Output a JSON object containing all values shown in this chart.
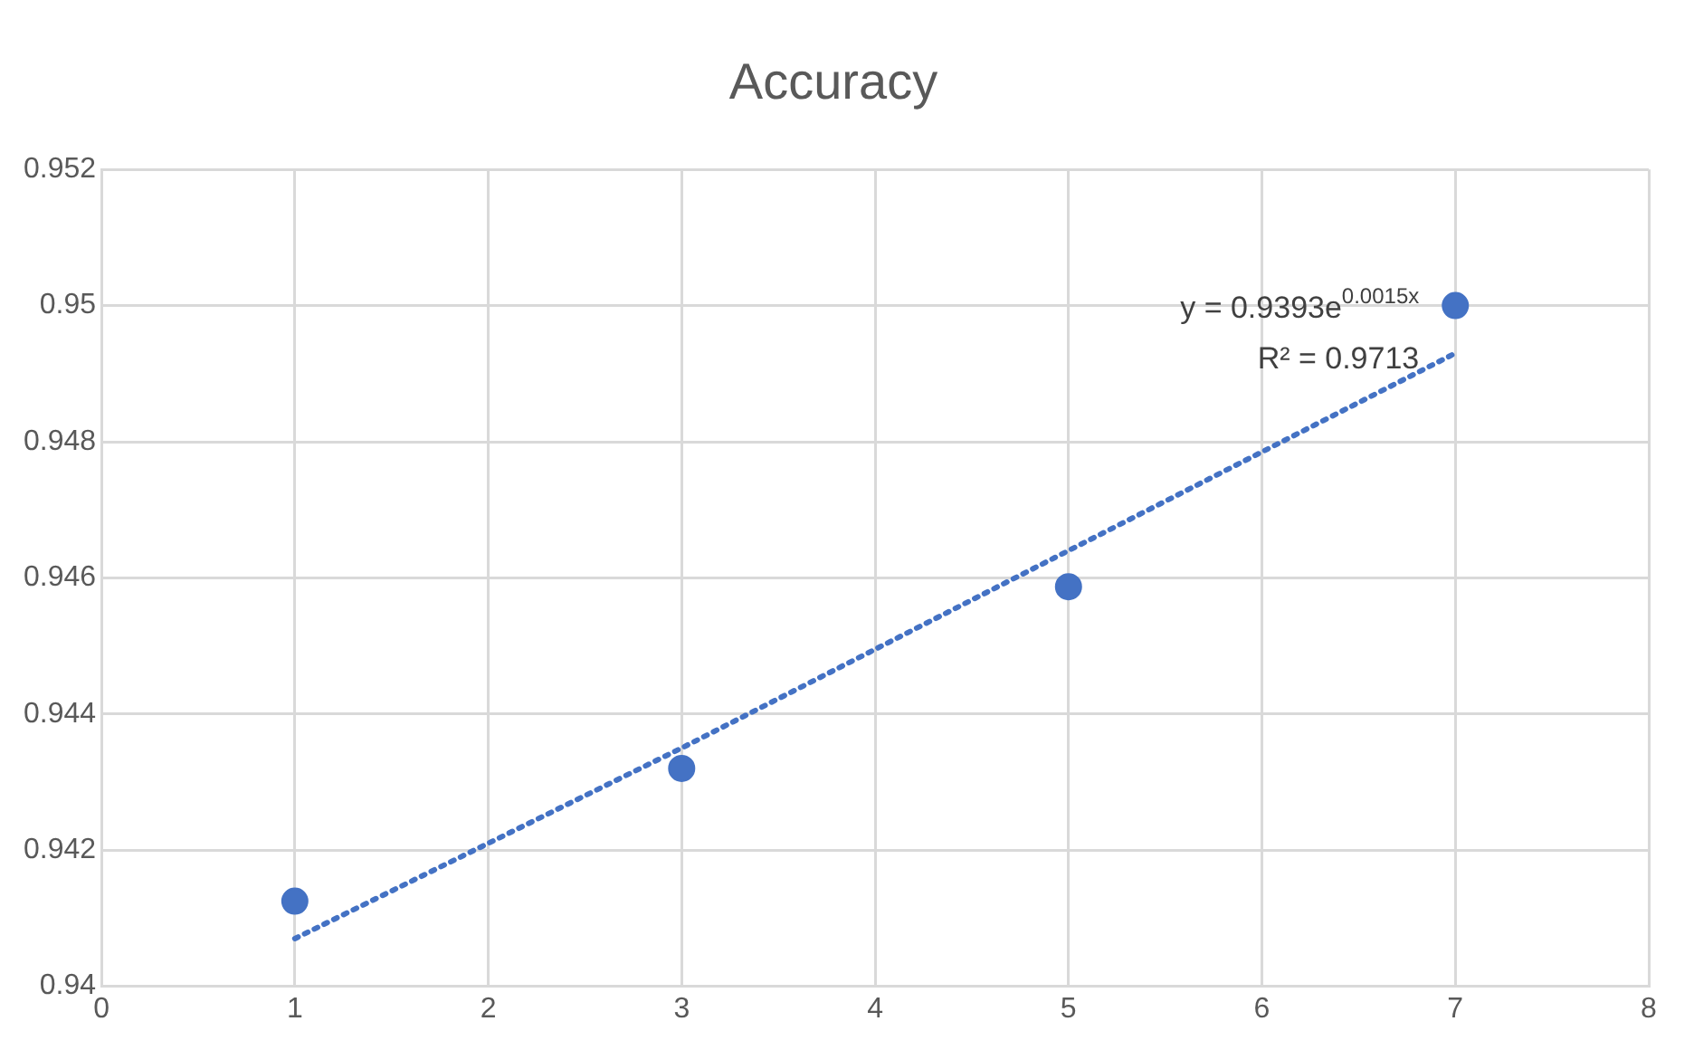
{
  "chart_data": {
    "type": "scatter",
    "title": "Accuracy",
    "series": [
      {
        "color": "#4472c4",
        "x": [
          1,
          3,
          5,
          7
        ],
        "values": [
          0.94125,
          0.9432,
          0.94587,
          0.95
        ]
      },
      {
        "type": "line",
        "color": "#4472c4",
        "line_style": "dotted",
        "marker": "none",
        "x": [
          1,
          3,
          5,
          7
        ],
        "values": [
          0.9407,
          0.9435,
          0.9464,
          0.9493
        ]
      }
    ],
    "marker": "circle",
    "xlim": [
      0,
      8
    ],
    "xticks": [
      0,
      1,
      2,
      3,
      4,
      5,
      6,
      7,
      8
    ],
    "ylim": [
      0.94,
      0.952
    ],
    "yticks": [
      0.94,
      0.942,
      0.944,
      0.946,
      0.948,
      0.95,
      0.952
    ],
    "grid": true,
    "legend": false,
    "annotations": [
      "y = 0.9393e$^{0.0015x}$",
      "R² = 0.9713"
    ]
  }
}
